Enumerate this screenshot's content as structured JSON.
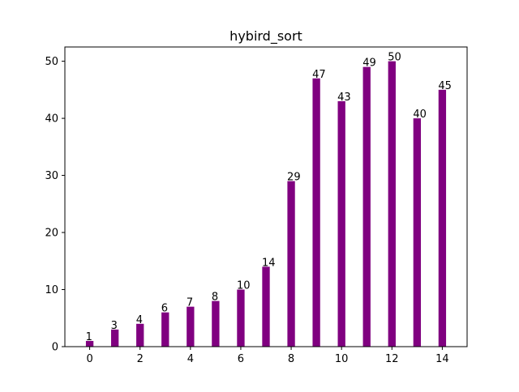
{
  "chart_data": {
    "type": "bar",
    "title": "hybird_sort",
    "xlabel": "",
    "ylabel": "",
    "x": [
      0,
      1,
      2,
      3,
      4,
      5,
      6,
      7,
      8,
      9,
      10,
      11,
      12,
      13,
      14
    ],
    "values": [
      1,
      3,
      4,
      6,
      7,
      8,
      10,
      14,
      29,
      47,
      43,
      49,
      50,
      40,
      45
    ],
    "data_labels": [
      "1",
      "3",
      "4",
      "6",
      "7",
      "8",
      "10",
      "14",
      "29",
      "47",
      "43",
      "49",
      "50",
      "40",
      "45"
    ],
    "xlim": [
      -0.985,
      14.985
    ],
    "ylim": [
      0,
      52.5
    ],
    "x_ticks": [
      0,
      2,
      4,
      6,
      8,
      10,
      12,
      14
    ],
    "x_tick_labels": [
      "0",
      "2",
      "4",
      "6",
      "8",
      "10",
      "12",
      "14"
    ],
    "y_ticks": [
      0,
      10,
      20,
      30,
      40,
      50
    ],
    "y_tick_labels": [
      "0",
      "10",
      "20",
      "30",
      "40",
      "50"
    ],
    "bar_width": 0.3,
    "bar_color": "#800080",
    "grid": false,
    "legend": "none"
  }
}
